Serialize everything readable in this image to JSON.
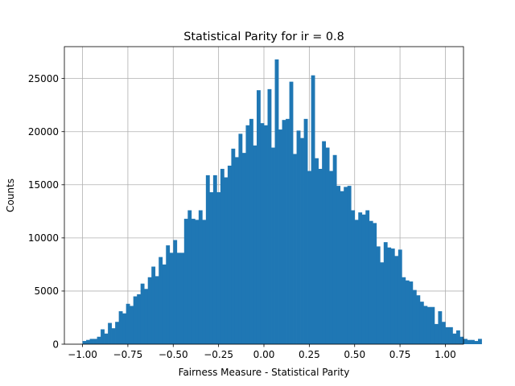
{
  "chart_data": {
    "type": "bar",
    "title": "Statistical Parity for ir = 0.8",
    "xlabel": "Fairness Measure - Statistical Parity",
    "ylabel": "Counts",
    "xlim": [
      -1.1,
      1.1
    ],
    "ylim": [
      0,
      28000
    ],
    "xticks": [
      -1.0,
      -0.75,
      -0.5,
      -0.25,
      0.0,
      0.25,
      0.5,
      0.75,
      1.0
    ],
    "xtick_labels": [
      "−1.00",
      "−0.75",
      "−0.50",
      "−0.25",
      "0.00",
      "0.25",
      "0.50",
      "0.75",
      "1.00"
    ],
    "yticks": [
      0,
      5000,
      10000,
      15000,
      20000,
      25000
    ],
    "ytick_labels": [
      "0",
      "5000",
      "10000",
      "15000",
      "20000",
      "25000"
    ],
    "grid": true,
    "bar_color": "#1f77b4",
    "bin_start": -1.0,
    "bin_width": 0.02,
    "values": [
      300,
      400,
      500,
      500,
      700,
      1400,
      1000,
      2000,
      1500,
      2100,
      3100,
      2900,
      3800,
      3600,
      4500,
      4700,
      5700,
      5200,
      6300,
      7300,
      6400,
      8200,
      7500,
      9300,
      8600,
      9800,
      8600,
      8600,
      11800,
      12600,
      11800,
      11700,
      12600,
      11700,
      15900,
      14300,
      15900,
      14300,
      16500,
      15700,
      16800,
      18400,
      17600,
      19800,
      18000,
      20600,
      21200,
      18700,
      23900,
      20800,
      20600,
      24000,
      18500,
      26800,
      20200,
      21100,
      21200,
      24700,
      17900,
      20100,
      19400,
      21200,
      16300,
      25300,
      17500,
      16500,
      19100,
      18500,
      16300,
      17800,
      14900,
      14400,
      14800,
      14900,
      12600,
      11700,
      12400,
      12200,
      12600,
      11600,
      11400,
      9200,
      7700,
      9600,
      9100,
      9000,
      8300,
      8900,
      6300,
      6000,
      5900,
      5100,
      4600,
      4000,
      3600,
      3500,
      3500,
      1900,
      3100,
      2100,
      1600,
      1600,
      1000,
      1300,
      700,
      500,
      400,
      400,
      300,
      500
    ]
  }
}
